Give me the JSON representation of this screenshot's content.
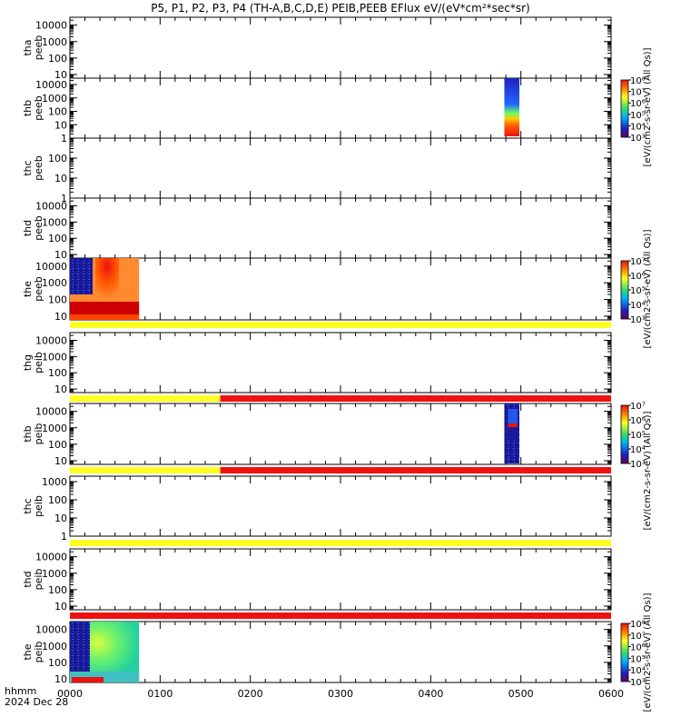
{
  "chart_data": {
    "type": "heatmap",
    "title": "P5, P1, P2, P3, P4 (TH-A,B,C,D,E) PEIB,PEEB EFlux eV/(eV*cm²*sec*sr)",
    "x_axis": {
      "label_line1": "hhmm",
      "label_line2": "2024 Dec 28",
      "range": [
        "0000",
        "0600"
      ],
      "ticks": [
        "0000",
        "0100",
        "0200",
        "0300",
        "0400",
        "0500",
        "0600"
      ]
    },
    "panels": [
      {
        "label1": "tha",
        "label2": "peeb",
        "yticks": [
          "10",
          "100",
          "1000",
          "10000"
        ],
        "ylim": [
          6,
          30000
        ]
      },
      {
        "label1": "thb",
        "label2": "peeb",
        "yticks": [
          "1",
          "10",
          "100",
          "1000",
          "10000"
        ],
        "ylim": [
          1,
          30000
        ],
        "data_coverage": [
          [
            "0449",
            "0459"
          ]
        ],
        "note": "spectrogram from 1 eV to ~20000 eV, low energies saturated red"
      },
      {
        "label1": "thc",
        "label2": "peeb",
        "yticks": [
          "1",
          "10",
          "100"
        ],
        "ylim": [
          1,
          1000
        ]
      },
      {
        "label1": "thd",
        "label2": "peeb",
        "yticks": [
          "10",
          "100",
          "1000",
          "10000"
        ],
        "ylim": [
          6,
          30000
        ]
      },
      {
        "label1": "the",
        "label2": "peeb",
        "yticks": [
          "10",
          "100",
          "1000",
          "10000"
        ],
        "ylim": [
          6,
          30000
        ],
        "data_coverage": [
          [
            "0000",
            "0046"
          ]
        ],
        "quality_bar": {
          "color": "yellow",
          "span": [
            "0000",
            "0600"
          ]
        }
      },
      {
        "label1": "thg",
        "label2": "peib",
        "yticks": [
          "10",
          "100",
          "1000",
          "10000"
        ],
        "ylim": [
          6,
          30000
        ],
        "quality_bar": {
          "segments": [
            {
              "color": "yellow",
              "span": [
                "0000",
                "0140"
              ]
            },
            {
              "color": "red",
              "span": [
                "0140",
                "0600"
              ]
            }
          ]
        }
      },
      {
        "label1": "thb",
        "label2": "peib",
        "yticks": [
          "10",
          "100",
          "1000",
          "10000"
        ],
        "ylim": [
          6,
          30000
        ],
        "data_coverage": [
          [
            "0449",
            "0459"
          ]
        ],
        "quality_bar": {
          "segments": [
            {
              "color": "yellow",
              "span": [
                "0000",
                "0140"
              ]
            },
            {
              "color": "red",
              "span": [
                "0140",
                "0600"
              ]
            }
          ]
        }
      },
      {
        "label1": "thc",
        "label2": "peib",
        "yticks": [
          "1",
          "10",
          "100",
          "1000"
        ],
        "ylim": [
          1,
          2000
        ],
        "quality_bar": {
          "color": "yellow",
          "span": [
            "0000",
            "0600"
          ]
        }
      },
      {
        "label1": "thd",
        "label2": "peib",
        "yticks": [
          "10",
          "100",
          "1000",
          "10000"
        ],
        "ylim": [
          6,
          30000
        ],
        "quality_bar": {
          "color": "red",
          "span": [
            "0000",
            "0600"
          ]
        }
      },
      {
        "label1": "the",
        "label2": "peib",
        "yticks": [
          "10",
          "100",
          "1000",
          "10000"
        ],
        "ylim": [
          6,
          30000
        ],
        "data_coverage": [
          [
            "0000",
            "0046"
          ]
        ]
      }
    ],
    "colorbars": [
      {
        "label": "[eV/(cm2-s-sr-eV) (All Qs)]",
        "ticks": [
          "10³",
          "10⁴",
          "10⁵",
          "10⁶",
          "10⁷",
          "10⁸"
        ],
        "range_exp": [
          3,
          8
        ]
      },
      {
        "label": "[eV/(cm2-s-sr-eV) (All Qs)]",
        "ticks": [
          "10³",
          "10⁴",
          "10⁵",
          "10⁶",
          "10⁷"
        ],
        "range_exp": [
          3,
          7
        ]
      },
      {
        "label": "[eV/(cm2-s-sr-eV) (All Qs)]",
        "ticks": [
          "10³",
          "10⁴",
          "10⁵",
          "10⁶",
          "10⁷"
        ],
        "range_exp": [
          3,
          7
        ]
      },
      {
        "label": "[eV/(cm2-s-sr-eV) (All Qs)]",
        "ticks": [
          "10³",
          "10⁴",
          "10⁵",
          "10⁶",
          "10⁷",
          "10⁸"
        ],
        "range_exp": [
          3,
          8
        ]
      }
    ],
    "colors": {
      "red": "#ee1111",
      "yellow": "#ffff22",
      "blue_low": "#1a1a99",
      "green": "#33dd66"
    }
  }
}
